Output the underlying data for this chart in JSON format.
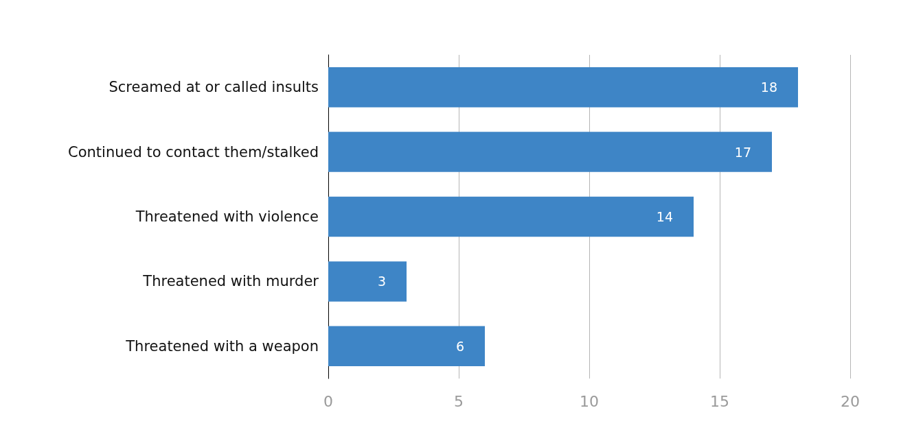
{
  "chart_data": {
    "type": "bar",
    "orientation": "horizontal",
    "categories": [
      "Screamed at or called insults",
      "Continued to contact them/stalked",
      "Threatened with violence",
      "Threatened with murder",
      "Threatened with a weapon"
    ],
    "values": [
      18,
      17,
      14,
      3,
      6
    ],
    "color": "#3e85c6",
    "xlim": [
      0,
      20
    ],
    "xticks": [
      0,
      5,
      10,
      15,
      20
    ],
    "grid": "x",
    "data_labels": true
  }
}
